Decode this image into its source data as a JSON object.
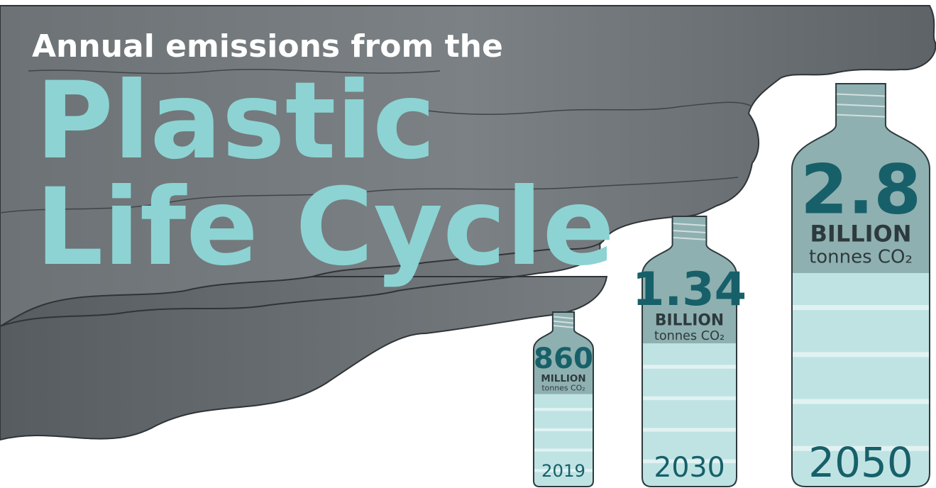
{
  "title": {
    "line1": "Annual emissions from the",
    "line2": "Plastic",
    "line3": "Life Cycle"
  },
  "bottles": [
    {
      "amount": "860",
      "scale": "MILLION",
      "unit": "tonnes CO₂",
      "year": "2019"
    },
    {
      "amount": "1.34",
      "scale": "BILLION",
      "unit": "tonnes CO₂",
      "year": "2030"
    },
    {
      "amount": "2.8",
      "scale": "BILLION",
      "unit": "tonnes CO₂",
      "year": "2050"
    }
  ]
}
